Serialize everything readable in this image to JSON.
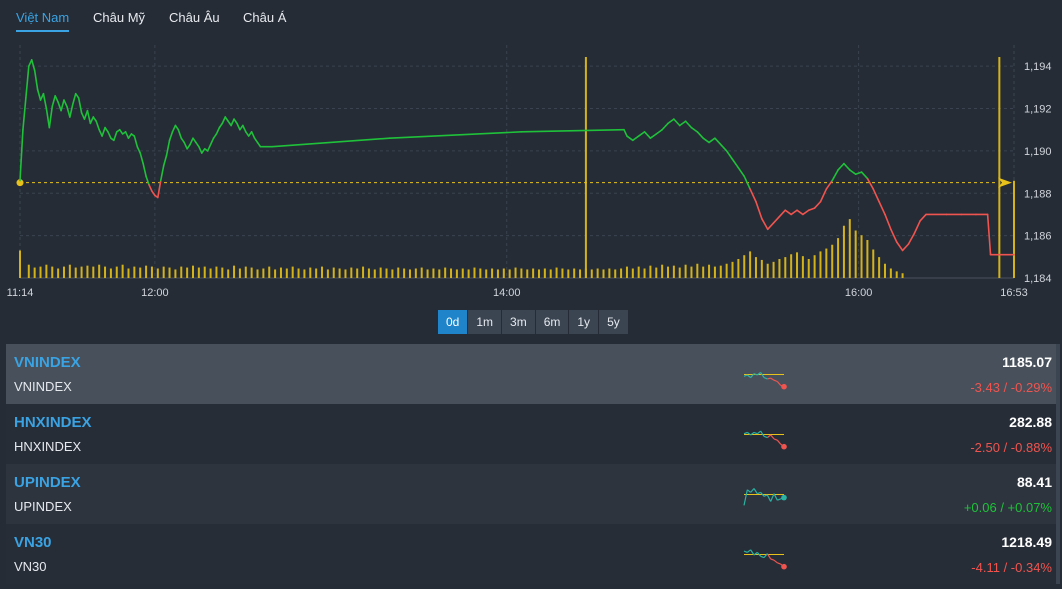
{
  "tabs": [
    "Việt Nam",
    "Châu Mỹ",
    "Châu Âu",
    "Châu Á"
  ],
  "active_tab": 0,
  "range_buttons": [
    "0d",
    "1m",
    "3m",
    "6m",
    "1y",
    "5y"
  ],
  "active_range": 0,
  "colors": {
    "up": "#1fc13a",
    "down": "#f0544f",
    "reference": "#e8c21b",
    "volume": "#d4b21a",
    "accent": "#1f84c9",
    "link": "#3aa3e3"
  },
  "chart_data": {
    "type": "line",
    "x_tick_labels": [
      "11:14",
      "12:00",
      "14:00",
      "16:00",
      "16:53"
    ],
    "x_tick_minutes": [
      674,
      720,
      840,
      960,
      1013
    ],
    "y_ticks": [
      "1,184",
      "1,186",
      "1,188",
      "1,190",
      "1,192",
      "1,194"
    ],
    "y_tick_values": [
      1184,
      1186,
      1188,
      1190,
      1192,
      1194
    ],
    "ylim": [
      1184,
      1195
    ],
    "xlim": [
      674,
      1013
    ],
    "reference": 1188.5,
    "grid": true,
    "price": [
      [
        674,
        1188.6
      ],
      [
        675,
        1191
      ],
      [
        676,
        1192.5
      ],
      [
        677,
        1194
      ],
      [
        678,
        1194.3
      ],
      [
        679,
        1193.8
      ],
      [
        680,
        1192.9
      ],
      [
        681,
        1192.4
      ],
      [
        682,
        1192.7
      ],
      [
        683,
        1192
      ],
      [
        684,
        1191.1
      ],
      [
        685,
        1192.1
      ],
      [
        686,
        1192.6
      ],
      [
        687,
        1192.3
      ],
      [
        688,
        1191.9
      ],
      [
        689,
        1192.4
      ],
      [
        690,
        1192.1
      ],
      [
        691,
        1191.6
      ],
      [
        692,
        1192.2
      ],
      [
        693,
        1192.7
      ],
      [
        694,
        1192.5
      ],
      [
        695,
        1191.8
      ],
      [
        696,
        1191.5
      ],
      [
        697,
        1191.9
      ],
      [
        698,
        1191.3
      ],
      [
        699,
        1191.6
      ],
      [
        700,
        1191.4
      ],
      [
        701,
        1191
      ],
      [
        702,
        1190.7
      ],
      [
        703,
        1191.1
      ],
      [
        704,
        1190.9
      ],
      [
        705,
        1190.6
      ],
      [
        706,
        1190.5
      ],
      [
        707,
        1190.9
      ],
      [
        708,
        1191
      ],
      [
        709,
        1190.8
      ],
      [
        710,
        1190.9
      ],
      [
        711,
        1190.6
      ],
      [
        712,
        1190.8
      ],
      [
        713,
        1190.7
      ],
      [
        714,
        1190.2
      ],
      [
        715,
        1189.9
      ],
      [
        716,
        1189.4
      ],
      [
        717,
        1188.8
      ],
      [
        718,
        1188.4
      ],
      [
        719,
        1188.1
      ],
      [
        720,
        1187.9
      ],
      [
        721,
        1187.8
      ],
      [
        722,
        1188.6
      ],
      [
        723,
        1189.3
      ],
      [
        724,
        1189.8
      ],
      [
        725,
        1190.5
      ],
      [
        726,
        1190.9
      ],
      [
        727,
        1191.2
      ],
      [
        728,
        1191
      ],
      [
        729,
        1190.6
      ],
      [
        730,
        1190.4
      ],
      [
        731,
        1190.1
      ],
      [
        732,
        1190.3
      ],
      [
        733,
        1190.6
      ],
      [
        734,
        1190.4
      ],
      [
        735,
        1190.2
      ],
      [
        736,
        1189.9
      ],
      [
        737,
        1190.1
      ],
      [
        738,
        1190
      ],
      [
        739,
        1190.3
      ],
      [
        740,
        1190.6
      ],
      [
        741,
        1190.8
      ],
      [
        742,
        1191.1
      ],
      [
        743,
        1191.3
      ],
      [
        744,
        1191.6
      ],
      [
        745,
        1191.4
      ],
      [
        746,
        1191.2
      ],
      [
        747,
        1191.5
      ],
      [
        748,
        1191.3
      ],
      [
        749,
        1191
      ],
      [
        750,
        1191.2
      ],
      [
        751,
        1190.9
      ],
      [
        752,
        1190.7
      ],
      [
        753,
        1190.9
      ],
      [
        754,
        1190.6
      ],
      [
        755,
        1190.4
      ],
      [
        756,
        1190.2
      ],
      [
        760,
        1190.2
      ],
      [
        800,
        1190.6
      ],
      [
        845,
        1190.9
      ],
      [
        880,
        1191
      ],
      [
        881,
        1190.7
      ],
      [
        883,
        1190.5
      ],
      [
        885,
        1190.7
      ],
      [
        887,
        1190.9
      ],
      [
        889,
        1190.6
      ],
      [
        891,
        1190.8
      ],
      [
        893,
        1191
      ],
      [
        895,
        1191.3
      ],
      [
        897,
        1191.5
      ],
      [
        899,
        1191.2
      ],
      [
        901,
        1191.4
      ],
      [
        903,
        1191.1
      ],
      [
        905,
        1190.9
      ],
      [
        907,
        1190.6
      ],
      [
        909,
        1190.4
      ],
      [
        911,
        1190.6
      ],
      [
        913,
        1190.3
      ],
      [
        915,
        1190
      ],
      [
        917,
        1189.6
      ],
      [
        919,
        1189.2
      ],
      [
        921,
        1188.8
      ],
      [
        923,
        1188.2
      ],
      [
        925,
        1187.6
      ],
      [
        927,
        1186.8
      ],
      [
        929,
        1186.3
      ],
      [
        931,
        1186.6
      ],
      [
        933,
        1186.9
      ],
      [
        935,
        1187.2
      ],
      [
        937,
        1187
      ],
      [
        939,
        1187.2
      ],
      [
        941,
        1187
      ],
      [
        943,
        1187.2
      ],
      [
        945,
        1187.3
      ],
      [
        947,
        1187.6
      ],
      [
        949,
        1188.2
      ],
      [
        951,
        1188.6
      ],
      [
        953,
        1189.1
      ],
      [
        955,
        1189.4
      ],
      [
        957,
        1189.1
      ],
      [
        959,
        1188.9
      ],
      [
        961,
        1189
      ],
      [
        963,
        1188.7
      ],
      [
        965,
        1188.2
      ],
      [
        967,
        1187.6
      ],
      [
        969,
        1187
      ],
      [
        971,
        1186.3
      ],
      [
        973,
        1185.7
      ],
      [
        975,
        1185.3
      ],
      [
        977,
        1185.6
      ],
      [
        979,
        1186.1
      ],
      [
        981,
        1186.7
      ],
      [
        983,
        1187
      ],
      [
        990,
        1187
      ],
      [
        995,
        1187
      ],
      [
        1000,
        1187
      ],
      [
        1004,
        1187
      ],
      [
        1005,
        1185.1
      ],
      [
        1013,
        1185.1
      ]
    ],
    "volume": [
      [
        674,
        0.29
      ],
      [
        677,
        0.14
      ],
      [
        679,
        0.11
      ],
      [
        681,
        0.12
      ],
      [
        683,
        0.14
      ],
      [
        685,
        0.12
      ],
      [
        687,
        0.1
      ],
      [
        689,
        0.12
      ],
      [
        691,
        0.14
      ],
      [
        693,
        0.11
      ],
      [
        695,
        0.12
      ],
      [
        697,
        0.13
      ],
      [
        699,
        0.12
      ],
      [
        701,
        0.14
      ],
      [
        703,
        0.12
      ],
      [
        705,
        0.1
      ],
      [
        707,
        0.12
      ],
      [
        709,
        0.14
      ],
      [
        711,
        0.1
      ],
      [
        713,
        0.12
      ],
      [
        715,
        0.11
      ],
      [
        717,
        0.13
      ],
      [
        719,
        0.12
      ],
      [
        721,
        0.1
      ],
      [
        723,
        0.12
      ],
      [
        725,
        0.11
      ],
      [
        727,
        0.09
      ],
      [
        729,
        0.12
      ],
      [
        731,
        0.11
      ],
      [
        733,
        0.13
      ],
      [
        735,
        0.11
      ],
      [
        737,
        0.12
      ],
      [
        739,
        0.1
      ],
      [
        741,
        0.12
      ],
      [
        743,
        0.11
      ],
      [
        745,
        0.09
      ],
      [
        747,
        0.13
      ],
      [
        749,
        0.1
      ],
      [
        751,
        0.12
      ],
      [
        753,
        0.11
      ],
      [
        755,
        0.09
      ],
      [
        757,
        0.1
      ],
      [
        759,
        0.12
      ],
      [
        761,
        0.09
      ],
      [
        763,
        0.11
      ],
      [
        765,
        0.1
      ],
      [
        767,
        0.12
      ],
      [
        769,
        0.1
      ],
      [
        771,
        0.09
      ],
      [
        773,
        0.11
      ],
      [
        775,
        0.1
      ],
      [
        777,
        0.12
      ],
      [
        779,
        0.09
      ],
      [
        781,
        0.11
      ],
      [
        783,
        0.1
      ],
      [
        785,
        0.09
      ],
      [
        787,
        0.11
      ],
      [
        789,
        0.1
      ],
      [
        791,
        0.12
      ],
      [
        793,
        0.1
      ],
      [
        795,
        0.09
      ],
      [
        797,
        0.11
      ],
      [
        799,
        0.1
      ],
      [
        801,
        0.09
      ],
      [
        803,
        0.11
      ],
      [
        805,
        0.1
      ],
      [
        807,
        0.09
      ],
      [
        809,
        0.1
      ],
      [
        811,
        0.11
      ],
      [
        813,
        0.09
      ],
      [
        815,
        0.1
      ],
      [
        817,
        0.09
      ],
      [
        819,
        0.11
      ],
      [
        821,
        0.1
      ],
      [
        823,
        0.09
      ],
      [
        825,
        0.1
      ],
      [
        827,
        0.09
      ],
      [
        829,
        0.11
      ],
      [
        831,
        0.1
      ],
      [
        833,
        0.09
      ],
      [
        835,
        0.1
      ],
      [
        837,
        0.09
      ],
      [
        839,
        0.1
      ],
      [
        841,
        0.09
      ],
      [
        843,
        0.11
      ],
      [
        845,
        0.1
      ],
      [
        847,
        0.09
      ],
      [
        849,
        0.1
      ],
      [
        851,
        0.09
      ],
      [
        853,
        0.1
      ],
      [
        855,
        0.09
      ],
      [
        857,
        0.11
      ],
      [
        859,
        0.1
      ],
      [
        861,
        0.09
      ],
      [
        863,
        0.1
      ],
      [
        865,
        0.09
      ],
      [
        867,
        0.1
      ],
      [
        869,
        0.09
      ],
      [
        871,
        0.1
      ],
      [
        873,
        0.09
      ],
      [
        875,
        0.1
      ],
      [
        877,
        0.09
      ],
      [
        879,
        0.1
      ],
      [
        881,
        0.12
      ],
      [
        883,
        0.1
      ],
      [
        885,
        0.12
      ],
      [
        887,
        0.1
      ],
      [
        889,
        0.13
      ],
      [
        891,
        0.11
      ],
      [
        893,
        0.14
      ],
      [
        895,
        0.12
      ],
      [
        897,
        0.13
      ],
      [
        899,
        0.11
      ],
      [
        901,
        0.14
      ],
      [
        903,
        0.12
      ],
      [
        905,
        0.15
      ],
      [
        907,
        0.12
      ],
      [
        909,
        0.14
      ],
      [
        911,
        0.12
      ],
      [
        913,
        0.13
      ],
      [
        915,
        0.15
      ],
      [
        917,
        0.17
      ],
      [
        919,
        0.2
      ],
      [
        921,
        0.24
      ],
      [
        923,
        0.28
      ],
      [
        925,
        0.22
      ],
      [
        927,
        0.19
      ],
      [
        929,
        0.15
      ],
      [
        931,
        0.17
      ],
      [
        933,
        0.2
      ],
      [
        935,
        0.22
      ],
      [
        937,
        0.25
      ],
      [
        939,
        0.27
      ],
      [
        941,
        0.23
      ],
      [
        943,
        0.2
      ],
      [
        945,
        0.24
      ],
      [
        947,
        0.28
      ],
      [
        949,
        0.31
      ],
      [
        951,
        0.35
      ],
      [
        953,
        0.42
      ],
      [
        955,
        0.55
      ],
      [
        957,
        0.62
      ],
      [
        959,
        0.5
      ],
      [
        961,
        0.45
      ],
      [
        963,
        0.4
      ],
      [
        965,
        0.3
      ],
      [
        967,
        0.22
      ],
      [
        969,
        0.15
      ],
      [
        971,
        0.1
      ],
      [
        973,
        0.07
      ],
      [
        975,
        0.05
      ]
    ],
    "volume_spikes": [
      [
        867,
        1.0
      ],
      [
        1008,
        1.0
      ],
      [
        1013,
        0.44
      ]
    ]
  },
  "indices": [
    {
      "code": "VNINDEX",
      "name": "VNINDEX",
      "value": "1185.07",
      "change": "-3.43 / -0.29%",
      "direction": "down",
      "spark": [
        0.55,
        0.5,
        0.6,
        0.45,
        0.5,
        0.4,
        0.6,
        0.65,
        0.62,
        0.7,
        0.75,
        0.9,
        0.95
      ]
    },
    {
      "code": "HNXINDEX",
      "name": "HNXINDEX",
      "value": "282.88",
      "change": "-2.50 / -0.88%",
      "direction": "down",
      "spark": [
        0.45,
        0.4,
        0.5,
        0.4,
        0.45,
        0.35,
        0.55,
        0.6,
        0.5,
        0.65,
        0.7,
        0.85,
        0.95
      ]
    },
    {
      "code": "UPINDEX",
      "name": "UPINDEX",
      "value": "88.41",
      "change": "+0.06 / +0.07%",
      "direction": "up",
      "spark": [
        0.9,
        0.3,
        0.4,
        0.25,
        0.45,
        0.4,
        0.55,
        0.5,
        0.75,
        0.45,
        0.7,
        0.65,
        0.6
      ]
    },
    {
      "code": "VN30",
      "name": "VN30",
      "value": "1218.49",
      "change": "-4.11 / -0.34%",
      "direction": "down",
      "spark": [
        0.35,
        0.4,
        0.3,
        0.5,
        0.4,
        0.55,
        0.6,
        0.45,
        0.65,
        0.7,
        0.8,
        0.85,
        0.95
      ]
    }
  ]
}
